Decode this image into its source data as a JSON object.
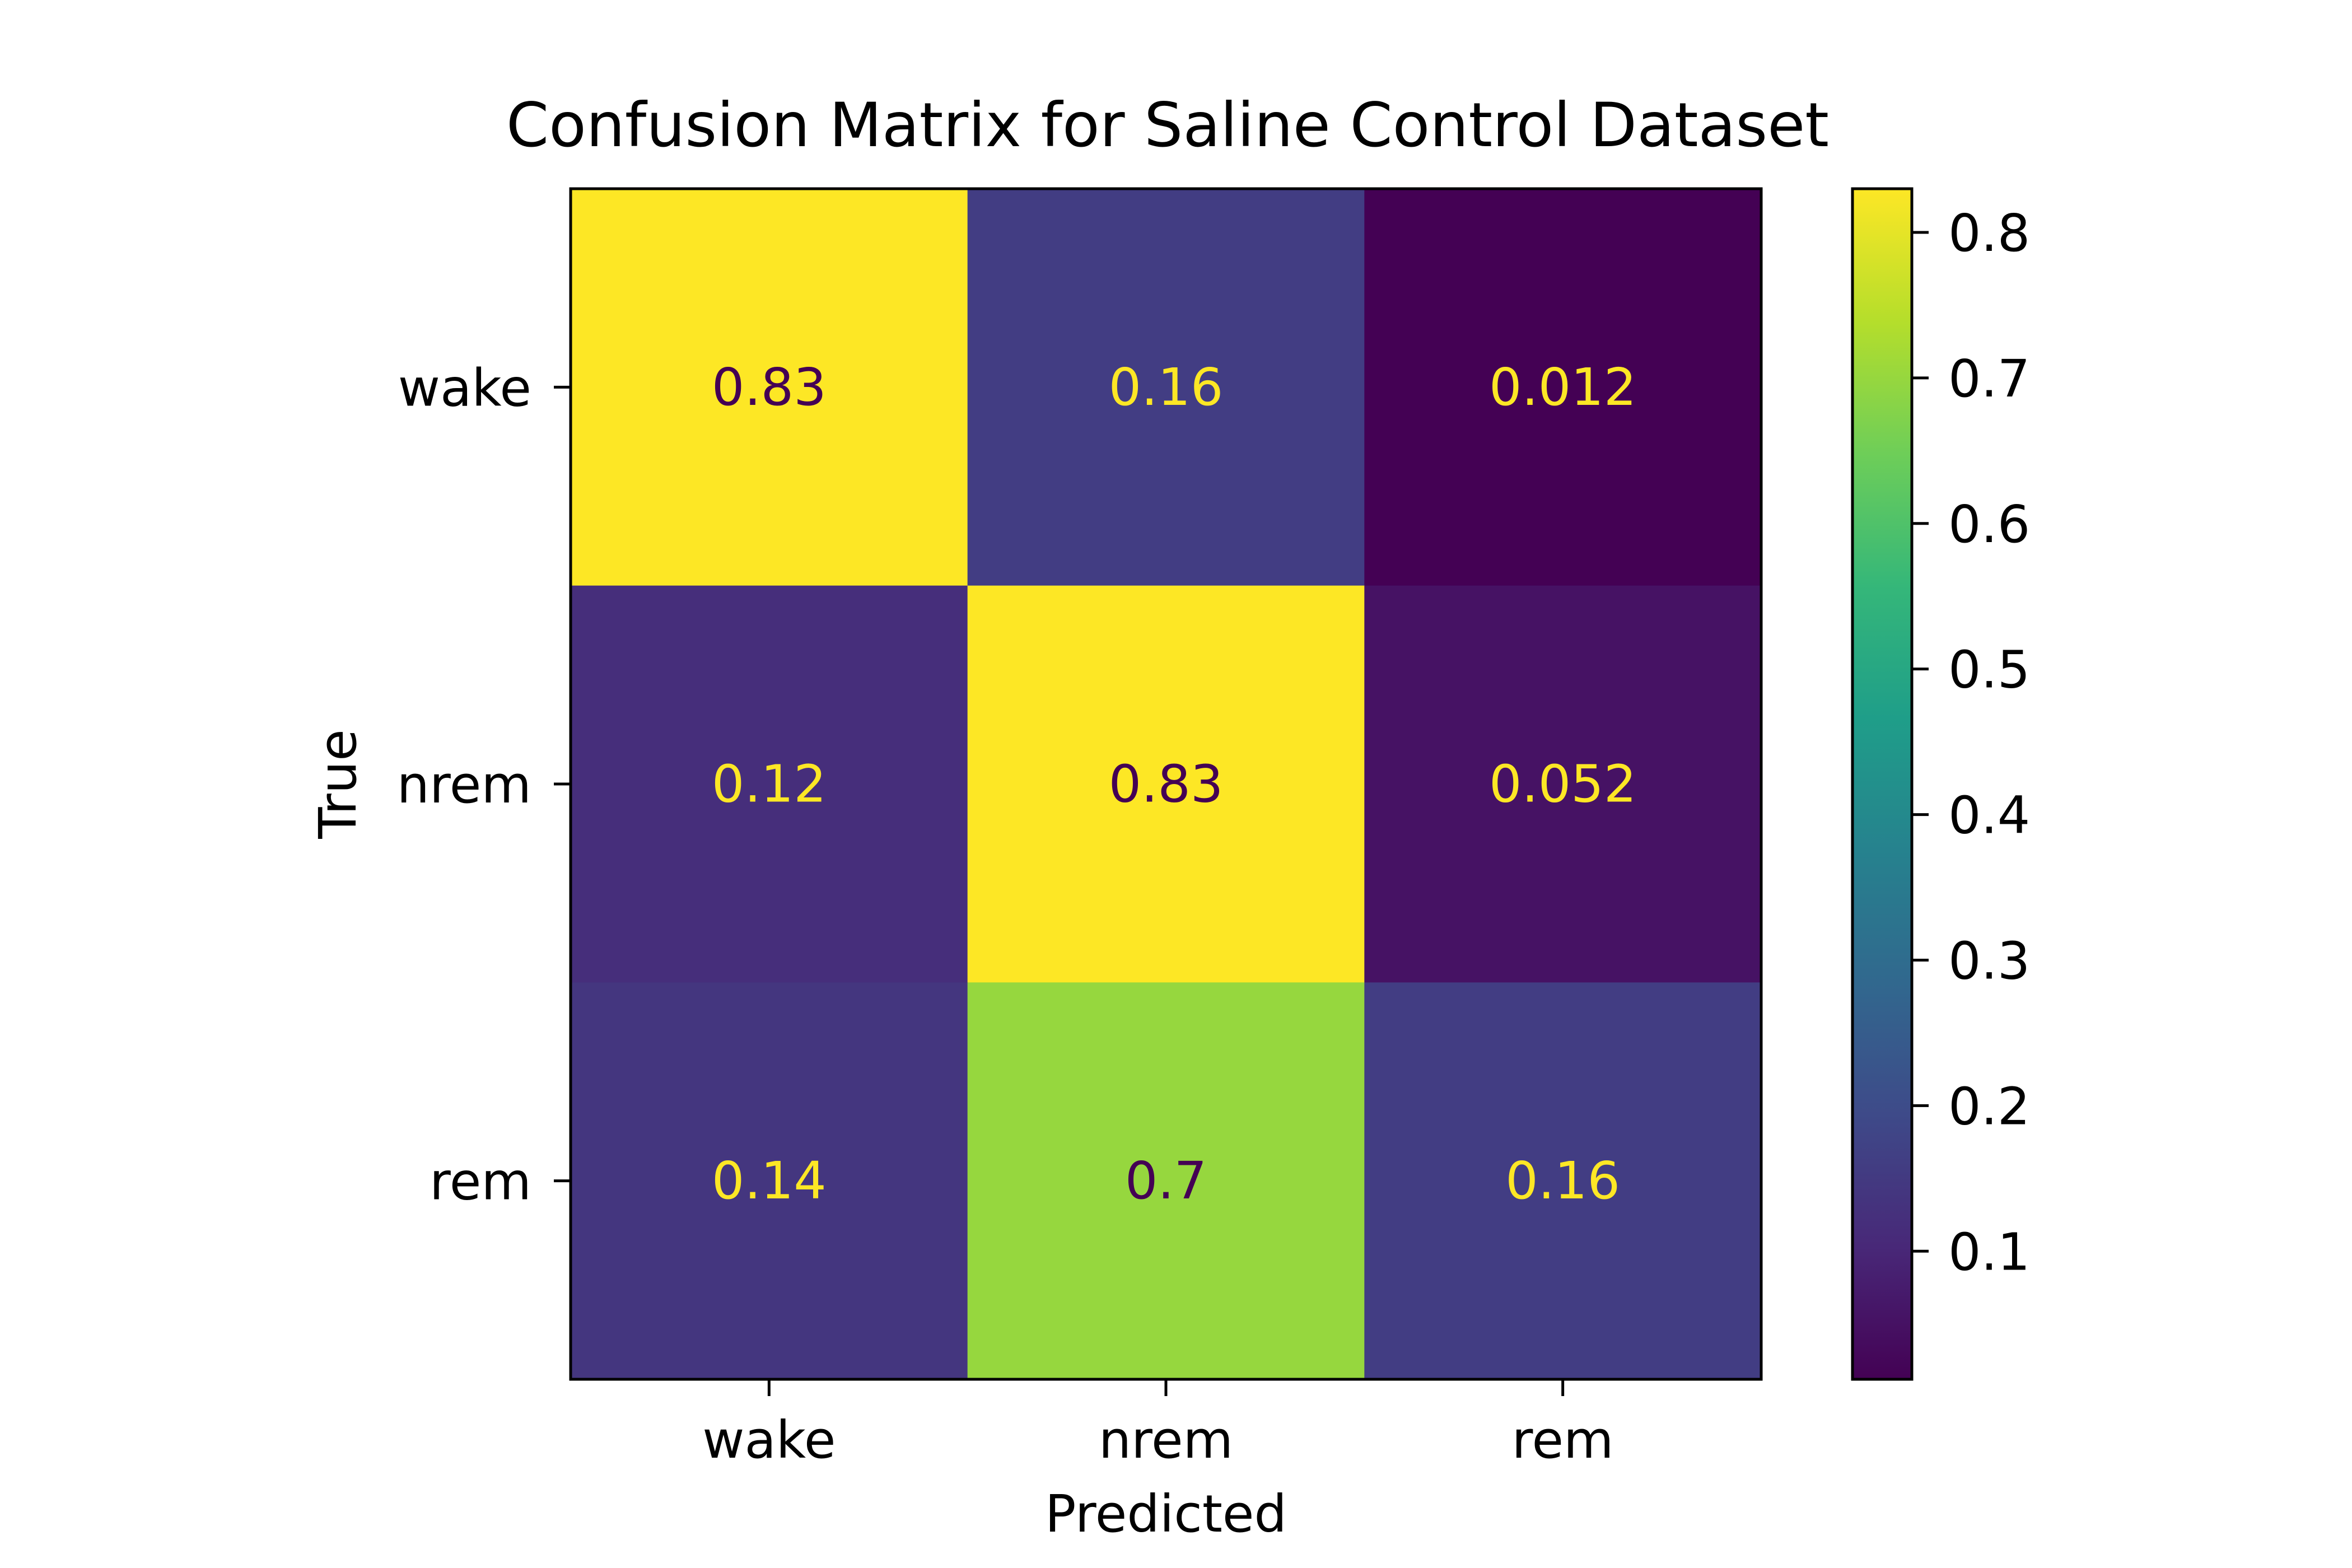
{
  "chart_data": {
    "type": "heatmap",
    "title": "Confusion Matrix for Saline Control Dataset",
    "xlabel": "Predicted",
    "ylabel": "True",
    "x_categories": [
      "wake",
      "nrem",
      "rem"
    ],
    "y_categories": [
      "wake",
      "nrem",
      "rem"
    ],
    "values": [
      [
        0.83,
        0.16,
        0.012
      ],
      [
        0.12,
        0.83,
        0.052
      ],
      [
        0.14,
        0.7,
        0.16
      ]
    ],
    "cell_labels": [
      [
        "0.83",
        "0.16",
        "0.012"
      ],
      [
        "0.12",
        "0.83",
        "0.052"
      ],
      [
        "0.14",
        "0.7",
        "0.16"
      ]
    ],
    "colormap": "viridis",
    "colorbar": {
      "vmin": 0.012,
      "vmax": 0.83,
      "ticks": [
        0.1,
        0.2,
        0.3,
        0.4,
        0.5,
        0.6,
        0.7,
        0.8
      ],
      "tick_labels": [
        "0.1",
        "0.2",
        "0.3",
        "0.4",
        "0.5",
        "0.6",
        "0.7",
        "0.8"
      ],
      "placement": "right"
    },
    "text_colors": {
      "dark": "#440154",
      "light": "#fde725"
    }
  }
}
